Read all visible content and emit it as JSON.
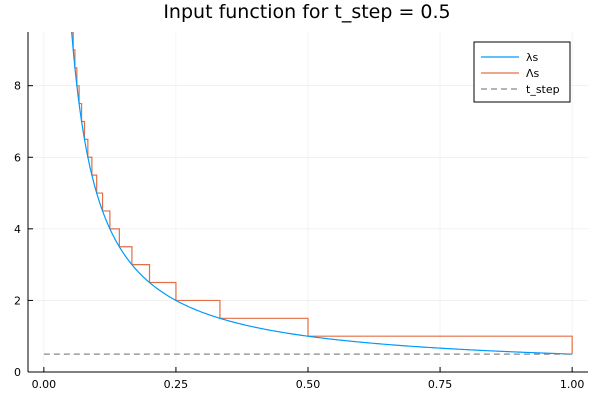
{
  "chart_data": {
    "type": "line",
    "title": "Input function for t_step = 0.5",
    "xlabel": "",
    "ylabel": "",
    "xlim": [
      -0.03,
      1.03
    ],
    "ylim": [
      0,
      9.5
    ],
    "xticks": [
      0,
      0.25,
      0.5,
      0.75,
      1
    ],
    "xtick_labels": [
      "0.00",
      "0.25",
      "0.50",
      "0.75",
      "1.00"
    ],
    "yticks": [
      0,
      2,
      4,
      6,
      8
    ],
    "ytick_labels": [
      "0",
      "2",
      "4",
      "6",
      "8"
    ],
    "grid": true,
    "legend_position": "top-right",
    "series": [
      {
        "name": "λs",
        "color": "#009AFA",
        "style": "solid",
        "function": "0.5/t",
        "x_range": [
          0.0526,
          1.0
        ]
      },
      {
        "name": "Λs",
        "color": "#E26F46",
        "style": "step",
        "step_values": [
          {
            "x": 0.05,
            "y": 10
          },
          {
            "x": 0.0526,
            "y": 9.5
          },
          {
            "x": 0.0556,
            "y": 9
          },
          {
            "x": 0.0588,
            "y": 8.5
          },
          {
            "x": 0.0625,
            "y": 8
          },
          {
            "x": 0.0667,
            "y": 7.5
          },
          {
            "x": 0.0714,
            "y": 7
          },
          {
            "x": 0.0769,
            "y": 6.5
          },
          {
            "x": 0.0833,
            "y": 6
          },
          {
            "x": 0.0909,
            "y": 5.5
          },
          {
            "x": 0.1,
            "y": 5
          },
          {
            "x": 0.1111,
            "y": 4.5
          },
          {
            "x": 0.125,
            "y": 4
          },
          {
            "x": 0.1429,
            "y": 3.5
          },
          {
            "x": 0.1667,
            "y": 3
          },
          {
            "x": 0.2,
            "y": 2.5
          },
          {
            "x": 0.25,
            "y": 2
          },
          {
            "x": 0.3333,
            "y": 1.5
          },
          {
            "x": 0.5,
            "y": 1
          },
          {
            "x": 1.0,
            "y": 0.5
          }
        ],
        "x_end": 1.0
      },
      {
        "name": "t_step",
        "color": "#888888",
        "style": "dashed",
        "x": [
          0,
          1
        ],
        "y": [
          0.5,
          0.5
        ]
      }
    ]
  }
}
